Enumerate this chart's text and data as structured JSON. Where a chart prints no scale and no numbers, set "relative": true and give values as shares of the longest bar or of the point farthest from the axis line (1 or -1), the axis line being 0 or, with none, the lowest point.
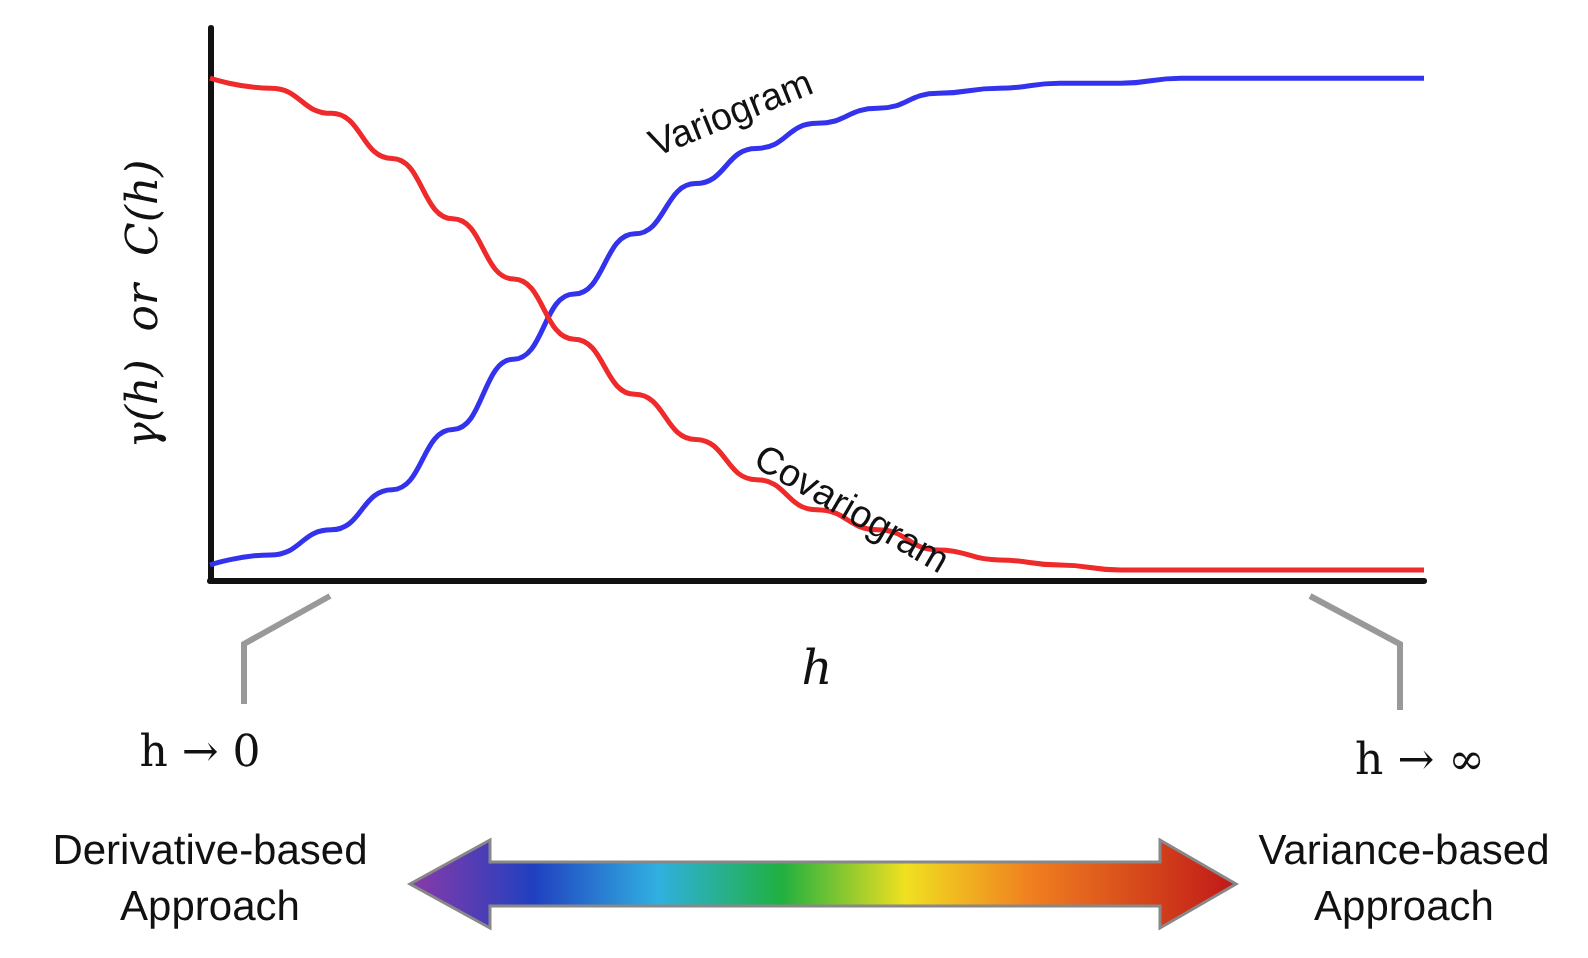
{
  "chart_data": {
    "type": "line",
    "relative": true,
    "xlabel": "h",
    "ylabel": "γ(h)  or  C(h)",
    "categories": [
      null,
      null,
      null,
      null,
      null,
      null,
      null,
      null,
      null,
      null,
      null,
      null,
      null,
      null,
      null,
      null,
      null,
      null,
      null,
      null,
      null
    ],
    "series": [
      {
        "name": "Variogram",
        "color": "#3333ee",
        "values": [
          0.03,
          0.05,
          0.1,
          0.18,
          0.3,
          0.44,
          0.57,
          0.69,
          0.79,
          0.86,
          0.91,
          0.94,
          0.97,
          0.98,
          0.99,
          0.99,
          1,
          1,
          1,
          1,
          1
        ]
      },
      {
        "name": "Covariogram",
        "color": "#ee2a2a",
        "values": [
          1,
          0.98,
          0.93,
          0.84,
          0.72,
          0.6,
          0.48,
          0.37,
          0.28,
          0.2,
          0.14,
          0.1,
          0.06,
          0.04,
          0.03,
          0.02,
          0.02,
          0.02,
          0.02,
          0.02,
          0.02
        ]
      }
    ],
    "annotations": [
      "h → 0",
      "h → ∞",
      "Derivative-based Approach",
      "Variance-based Approach"
    ],
    "grid": false,
    "legend": false,
    "marker": "none",
    "line_style": "solid"
  }
}
